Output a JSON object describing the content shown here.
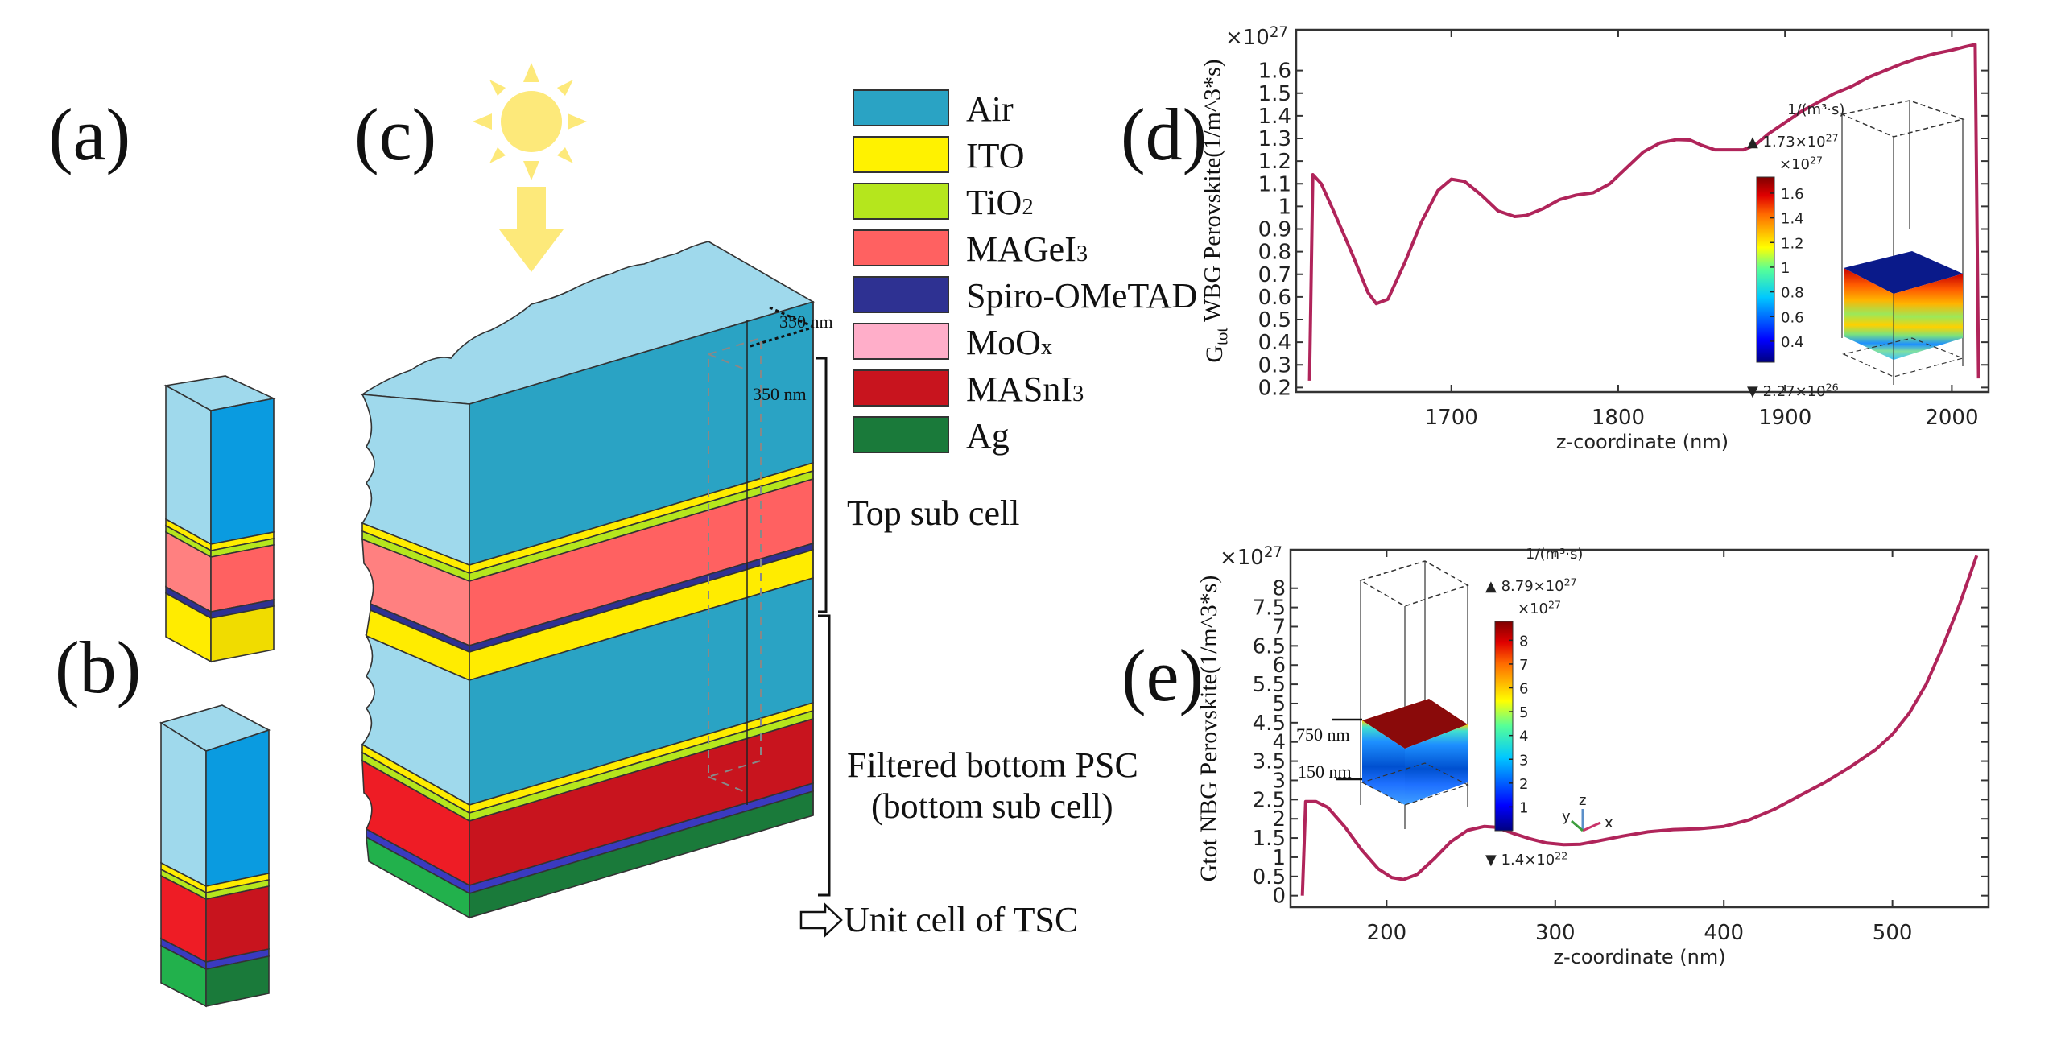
{
  "panels": {
    "a": "(a)",
    "b": "(b)",
    "c": "(c)",
    "d": "(d)",
    "e": "(e)"
  },
  "legend": {
    "items": [
      {
        "label": "Air",
        "sub": "",
        "color": "#2aa3c4"
      },
      {
        "label": "ITO",
        "sub": "",
        "color": "#fff200"
      },
      {
        "label": "TiO",
        "sub": "2",
        "color": "#b5e61d"
      },
      {
        "label": "MAGeI",
        "sub": "3",
        "color": "#ff6161"
      },
      {
        "label": "Spiro-OMeTAD",
        "sub": "",
        "color": "#2e3192"
      },
      {
        "label": "MoO",
        "sub": "x",
        "color": "#ffaec9"
      },
      {
        "label": "MASnI",
        "sub": "3",
        "color": "#c8141e"
      },
      {
        "label": "Ag",
        "sub": "",
        "color": "#1a7a3a"
      }
    ]
  },
  "annotations": {
    "dim_top": "350 nm",
    "dim_side": "350 nm",
    "top_sub_cell": "Top sub cell",
    "bottom_line1": "Filtered bottom PSC",
    "bottom_line2": "(bottom sub cell)",
    "unit_cell": "Unit cell of TSC"
  },
  "colors": {
    "air_light": "#9fd9ec",
    "air_front": "#2aa3c4",
    "air_a_front": "#0a9be0",
    "ito": "#ffec00",
    "tio2": "#b5e61d",
    "mage": "#ff6161",
    "mage_light": "#ff8080",
    "spiro": "#2e3192",
    "mosn": "#c8141e",
    "mosn_light": "#ee1c25",
    "ag": "#1a7a3a",
    "ag_light": "#22b14c",
    "sun": "#fde97a",
    "curve": "#b0245a"
  },
  "chart_data": [
    {
      "id": "d",
      "type": "line",
      "title": "",
      "xlabel": "z-coordinate (nm)",
      "ylabel_main": "G",
      "ylabel_sub": "tot",
      "ylabel_rest": " WBG Perovskite(1/m^3*s)",
      "y_multiplier": "×10",
      "y_multiplier_exp": "27",
      "xlim": [
        1607,
        2022
      ],
      "ylim": [
        0.18,
        1.78
      ],
      "xticks": [
        1700,
        1800,
        1900,
        2000
      ],
      "xtick_labels": [
        "1700",
        "1800",
        "1900",
        "2000"
      ],
      "yticks": [
        0.2,
        0.3,
        0.4,
        0.5,
        0.6,
        0.7,
        0.8,
        0.9,
        1.0,
        1.1,
        1.2,
        1.3,
        1.4,
        1.5,
        1.6
      ],
      "ytick_labels": [
        "0.2",
        "0.3",
        "0.4",
        "0.5",
        "0.6",
        "0.7",
        "0.8",
        "0.9",
        "1",
        "1.1",
        "1.2",
        "1.3",
        "1.4",
        "1.5",
        "1.6"
      ],
      "grid": false,
      "series": [
        {
          "name": "Gtot WBG",
          "x": [
            1615,
            1617,
            1622,
            1630,
            1640,
            1650,
            1655,
            1662,
            1672,
            1682,
            1692,
            1700,
            1708,
            1718,
            1728,
            1738,
            1745,
            1755,
            1765,
            1775,
            1785,
            1795,
            1805,
            1815,
            1825,
            1835,
            1843,
            1850,
            1858,
            1866,
            1875,
            1882,
            1890,
            1900,
            1910,
            1920,
            1930,
            1940,
            1950,
            1960,
            1970,
            1980,
            1990,
            2000,
            2008,
            2014,
            2016
          ],
          "y": [
            0.23,
            1.14,
            1.1,
            0.97,
            0.8,
            0.62,
            0.57,
            0.59,
            0.75,
            0.93,
            1.07,
            1.12,
            1.11,
            1.05,
            0.98,
            0.955,
            0.96,
            0.99,
            1.03,
            1.05,
            1.06,
            1.1,
            1.17,
            1.24,
            1.28,
            1.295,
            1.293,
            1.27,
            1.25,
            1.25,
            1.25,
            1.27,
            1.32,
            1.37,
            1.42,
            1.46,
            1.5,
            1.53,
            1.57,
            1.6,
            1.63,
            1.655,
            1.675,
            1.69,
            1.705,
            1.715,
            0.24
          ]
        }
      ],
      "inset": {
        "unit": "1/(m³·s)",
        "max_label": "1.73×10",
        "max_exp": "27",
        "min_label": "2.27×10",
        "min_exp": "26",
        "cb_multiplier": "×10",
        "cb_multiplier_exp": "27",
        "cb_range": [
          0.23,
          1.73
        ],
        "cb_ticks": [
          0.4,
          0.6,
          0.8,
          1,
          1.2,
          1.4,
          1.6
        ],
        "cb_tick_labels": [
          "0.4",
          "0.6",
          "0.8",
          "1",
          "1.2",
          "1.4",
          "1.6"
        ]
      }
    },
    {
      "id": "e",
      "type": "line",
      "title": "",
      "xlabel": "z-coordinate (nm)",
      "ylabel_main": "Gtot NBG Perovskite(1/m^3*s)",
      "y_multiplier": "×10",
      "y_multiplier_exp": "27",
      "xlim": [
        143,
        557
      ],
      "ylim": [
        -0.3,
        9.0
      ],
      "xticks": [
        200,
        300,
        400,
        500
      ],
      "xtick_labels": [
        "200",
        "300",
        "400",
        "500"
      ],
      "yticks": [
        0,
        0.5,
        1,
        1.5,
        2,
        2.5,
        3,
        3.5,
        4,
        4.5,
        5,
        5.5,
        6,
        6.5,
        7,
        7.5,
        8
      ],
      "ytick_labels": [
        "0",
        "0.5",
        "1",
        "1.5",
        "2",
        "2.5",
        "3",
        "3.5",
        "4",
        "4.5",
        "5",
        "5.5",
        "6",
        "6.5",
        "7",
        "7.5",
        "8"
      ],
      "grid": false,
      "series": [
        {
          "name": "Gtot NBG",
          "x": [
            150,
            152,
            158,
            165,
            175,
            185,
            195,
            203,
            210,
            218,
            228,
            238,
            248,
            258,
            265,
            275,
            285,
            295,
            305,
            315,
            325,
            340,
            355,
            370,
            385,
            400,
            415,
            430,
            445,
            460,
            475,
            490,
            500,
            510,
            520,
            530,
            540,
            550
          ],
          "y": [
            0.0,
            2.45,
            2.45,
            2.3,
            1.8,
            1.2,
            0.7,
            0.47,
            0.42,
            0.55,
            0.95,
            1.4,
            1.7,
            1.8,
            1.78,
            1.62,
            1.48,
            1.37,
            1.33,
            1.34,
            1.42,
            1.55,
            1.66,
            1.72,
            1.74,
            1.8,
            1.97,
            2.25,
            2.6,
            2.95,
            3.35,
            3.8,
            4.2,
            4.75,
            5.5,
            6.5,
            7.6,
            8.85
          ]
        }
      ],
      "inset": {
        "unit": "1/(m³·s)",
        "max_label": "8.79×10",
        "max_exp": "27",
        "min_label": "1.4×10",
        "min_exp": "22",
        "cb_multiplier": "×10",
        "cb_multiplier_exp": "27",
        "cb_range": [
          0,
          8.79
        ],
        "cb_ticks": [
          1,
          2,
          3,
          4,
          5,
          6,
          7,
          8
        ],
        "cb_tick_labels": [
          "1",
          "2",
          "3",
          "4",
          "5",
          "6",
          "7",
          "8"
        ],
        "dim_750": "750 nm",
        "dim_150": "150 nm",
        "axis_x": "x",
        "axis_y": "y",
        "axis_z": "z"
      }
    }
  ]
}
